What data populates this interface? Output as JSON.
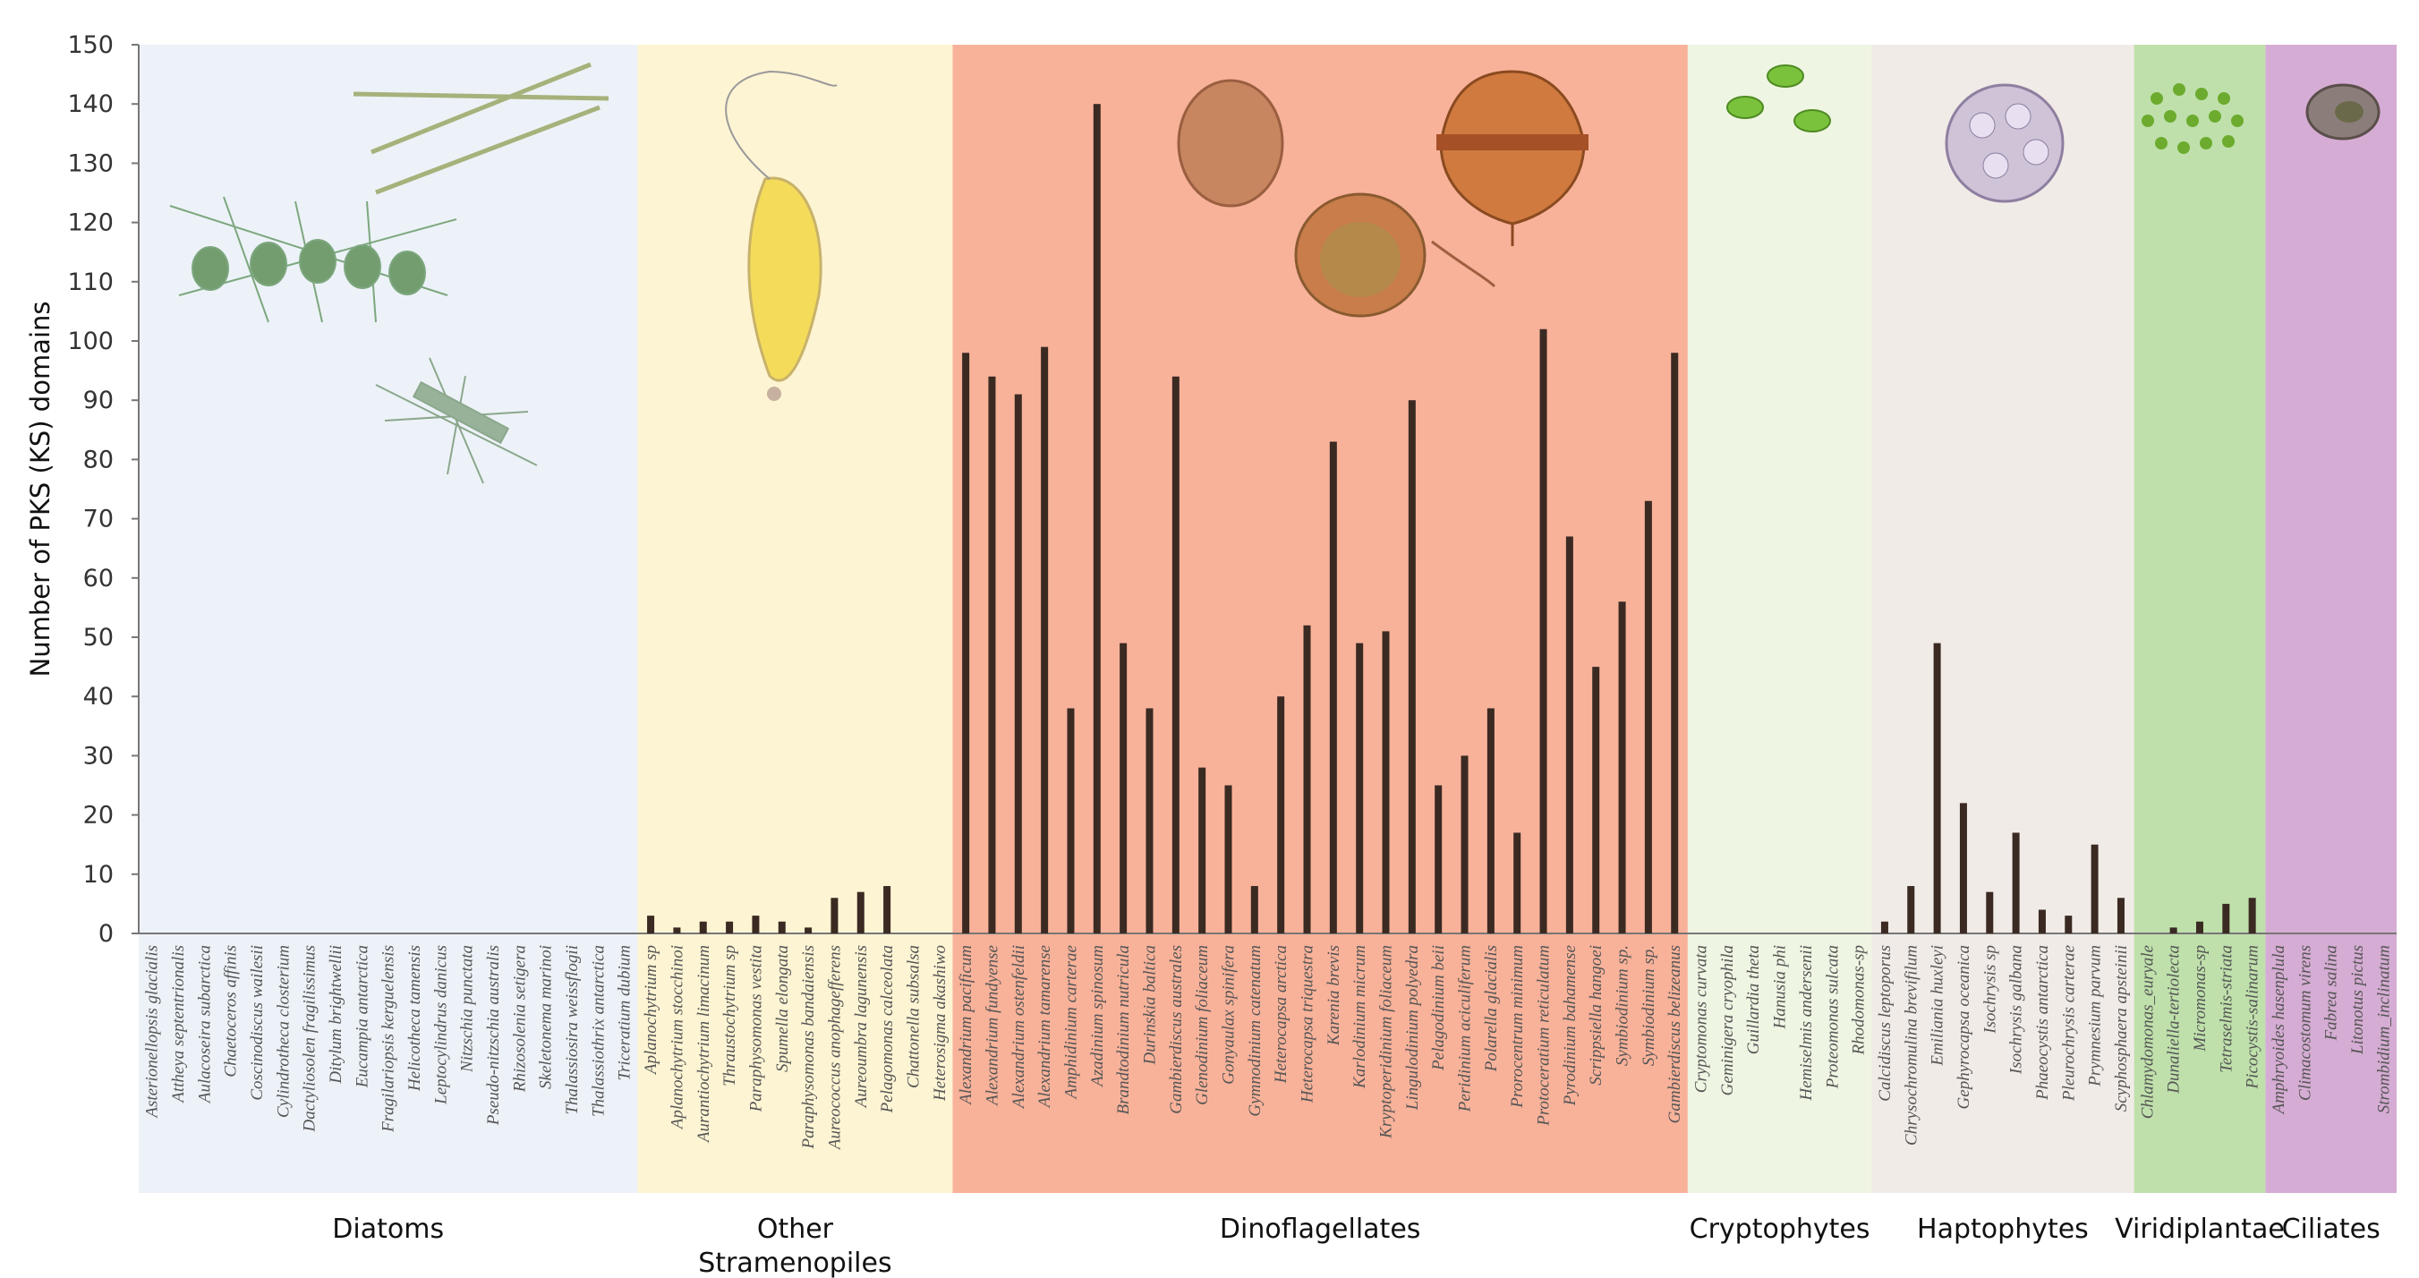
{
  "chart_data": {
    "type": "bar",
    "title": "",
    "xlabel": "",
    "ylabel": "Number of PKS (KS) domains",
    "ylim": [
      0,
      150
    ],
    "yticks": [
      0,
      10,
      20,
      30,
      40,
      50,
      60,
      70,
      80,
      90,
      100,
      110,
      120,
      130,
      140,
      150
    ],
    "grid": false,
    "groups": [
      {
        "name": "Diatoms",
        "color": "#edf2f8",
        "categories": [
          {
            "name": "Asterionellopsis glacialis",
            "value": 0
          },
          {
            "name": "Attheya septentrionalis",
            "value": 0
          },
          {
            "name": "Aulacoseira subarctica",
            "value": 0
          },
          {
            "name": "Chaetoceros affinis",
            "value": 0
          },
          {
            "name": "Coscinodiscus wailesii",
            "value": 0
          },
          {
            "name": "Cylindrotheca closterium",
            "value": 0
          },
          {
            "name": "Dactyliosolen fragilissimus",
            "value": 0
          },
          {
            "name": "Ditylum brightwellii",
            "value": 0
          },
          {
            "name": "Eucampia antarctica",
            "value": 0
          },
          {
            "name": "Fragilariopsis kerguelensis",
            "value": 0
          },
          {
            "name": "Helicotheca tamensis",
            "value": 0
          },
          {
            "name": "Leptocylindrus danicus",
            "value": 0
          },
          {
            "name": "Nitzschia punctata",
            "value": 0
          },
          {
            "name": "Pseudo-nitzschia australis",
            "value": 0
          },
          {
            "name": "Rhizosolenia setigera",
            "value": 0
          },
          {
            "name": "Skeletonema marinoi",
            "value": 0
          },
          {
            "name": "Thalassiosira weissflogii",
            "value": 0
          },
          {
            "name": "Thalassiothrix antarctica",
            "value": 0
          },
          {
            "name": "Triceratium dubium",
            "value": 0
          }
        ]
      },
      {
        "name": "Other Stramenopiles",
        "color": "#fdf4d3",
        "categories": [
          {
            "name": "Aplanochytrium sp",
            "value": 3
          },
          {
            "name": "Aplanochytrium stocchinoi",
            "value": 1
          },
          {
            "name": "Aurantiochytrium limacinum",
            "value": 2
          },
          {
            "name": "Thraustochytrium sp",
            "value": 2
          },
          {
            "name": "Paraphysomonas vestita",
            "value": 3
          },
          {
            "name": "Spumella elongata",
            "value": 2
          },
          {
            "name": "Paraphysomonas bandaiensis",
            "value": 1
          },
          {
            "name": "Aureococcus anophagefferens",
            "value": 6
          },
          {
            "name": "Aureoumbra lagunensis",
            "value": 7
          },
          {
            "name": "Pelagomonas calceolata",
            "value": 8
          },
          {
            "name": "Chattonella subsalsa",
            "value": 0
          },
          {
            "name": "Heterosigma akashiwo",
            "value": 0
          }
        ]
      },
      {
        "name": "Dinoflagellates",
        "color": "#f8b29a",
        "categories": [
          {
            "name": "Alexandrium pacificum",
            "value": 98
          },
          {
            "name": "Alexandrium fundyense",
            "value": 94
          },
          {
            "name": "Alexandrium ostenfeldii",
            "value": 91
          },
          {
            "name": "Alexandrium tamarense",
            "value": 99
          },
          {
            "name": "Amphidinium carterae",
            "value": 38
          },
          {
            "name": "Azadinium spinosum",
            "value": 140
          },
          {
            "name": "Brandtodinium nutricula",
            "value": 49
          },
          {
            "name": "Durinskia baltica",
            "value": 38
          },
          {
            "name": "Gambierdiscus australes",
            "value": 94
          },
          {
            "name": "Glenodinium foliaceum",
            "value": 28
          },
          {
            "name": "Gonyaulax spinifera",
            "value": 25
          },
          {
            "name": "Gymnodinium catenatum",
            "value": 8
          },
          {
            "name": "Heterocapsa arctica",
            "value": 40
          },
          {
            "name": "Heterocapsa triquestra",
            "value": 52
          },
          {
            "name": "Karenia brevis",
            "value": 83
          },
          {
            "name": "Karlodinium micrum",
            "value": 49
          },
          {
            "name": "Kryptoperidinium foliaceum",
            "value": 51
          },
          {
            "name": "Lingulodinium polyedra",
            "value": 90
          },
          {
            "name": "Pelagodinium beii",
            "value": 25
          },
          {
            "name": "Peridinium aciculiferum",
            "value": 30
          },
          {
            "name": "Polarella glacialis",
            "value": 38
          },
          {
            "name": "Prorocentrum minimum",
            "value": 17
          },
          {
            "name": "Protoceratium reticulatum",
            "value": 102
          },
          {
            "name": "Pyrodinium bahamense",
            "value": 67
          },
          {
            "name": "Scrippsiella hangoei",
            "value": 45
          },
          {
            "name": "Symbiodinium sp.",
            "value": 56
          },
          {
            "name": "Symbiodinium sp.",
            "value": 73
          },
          {
            "name": "Gambierdiscus belizeanus",
            "value": 98
          }
        ]
      },
      {
        "name": "Cryptophytes",
        "color": "#eef5e2",
        "categories": [
          {
            "name": "Cryptomonas curvata",
            "value": 0
          },
          {
            "name": "Geminigera cryophila",
            "value": 0
          },
          {
            "name": "Guillardia theta",
            "value": 0
          },
          {
            "name": "Hanusia phi",
            "value": 0
          },
          {
            "name": "Hemiselmis andersenii",
            "value": 0
          },
          {
            "name": "Proteomonas sulcata",
            "value": 0
          },
          {
            "name": "Rhodomonas-sp",
            "value": 0
          }
        ]
      },
      {
        "name": "Haptophytes",
        "color": "#f1ebe7",
        "categories": [
          {
            "name": "Calcidiscus leptoporus",
            "value": 2
          },
          {
            "name": "Chrysochromulina brevifilum",
            "value": 8
          },
          {
            "name": "Emiliania huxleyi",
            "value": 49
          },
          {
            "name": "Gephyrocapsa oceanica",
            "value": 22
          },
          {
            "name": "Isochrysis sp",
            "value": 7
          },
          {
            "name": "Isochrysis galbana",
            "value": 17
          },
          {
            "name": "Phaeocystis antarctica",
            "value": 4
          },
          {
            "name": "Pleurochrysis carterae",
            "value": 3
          },
          {
            "name": "Prymnesium parvum",
            "value": 15
          },
          {
            "name": "Scyphosphaera apsteinii",
            "value": 6
          }
        ]
      },
      {
        "name": "Viridiplantae",
        "color": "#bfe0ab",
        "categories": [
          {
            "name": "Chlamydomonas_euryale",
            "value": 0
          },
          {
            "name": "Dunaliella-tertiolecta",
            "value": 1
          },
          {
            "name": "Micromonas-sp",
            "value": 2
          },
          {
            "name": "Tetraselmis-striata",
            "value": 5
          },
          {
            "name": "Picocystis-salinarum",
            "value": 6
          }
        ]
      },
      {
        "name": "Ciliates",
        "color": "#d5acd3",
        "categories": [
          {
            "name": "Amphryoides hasenplula",
            "value": 0
          },
          {
            "name": "Climacostomum virens",
            "value": 0
          },
          {
            "name": "Fabrea salina",
            "value": 0
          },
          {
            "name": "Litonotus pictus",
            "value": 0
          },
          {
            "name": "Strombidium_inclinatum",
            "value": 0
          }
        ]
      }
    ]
  }
}
